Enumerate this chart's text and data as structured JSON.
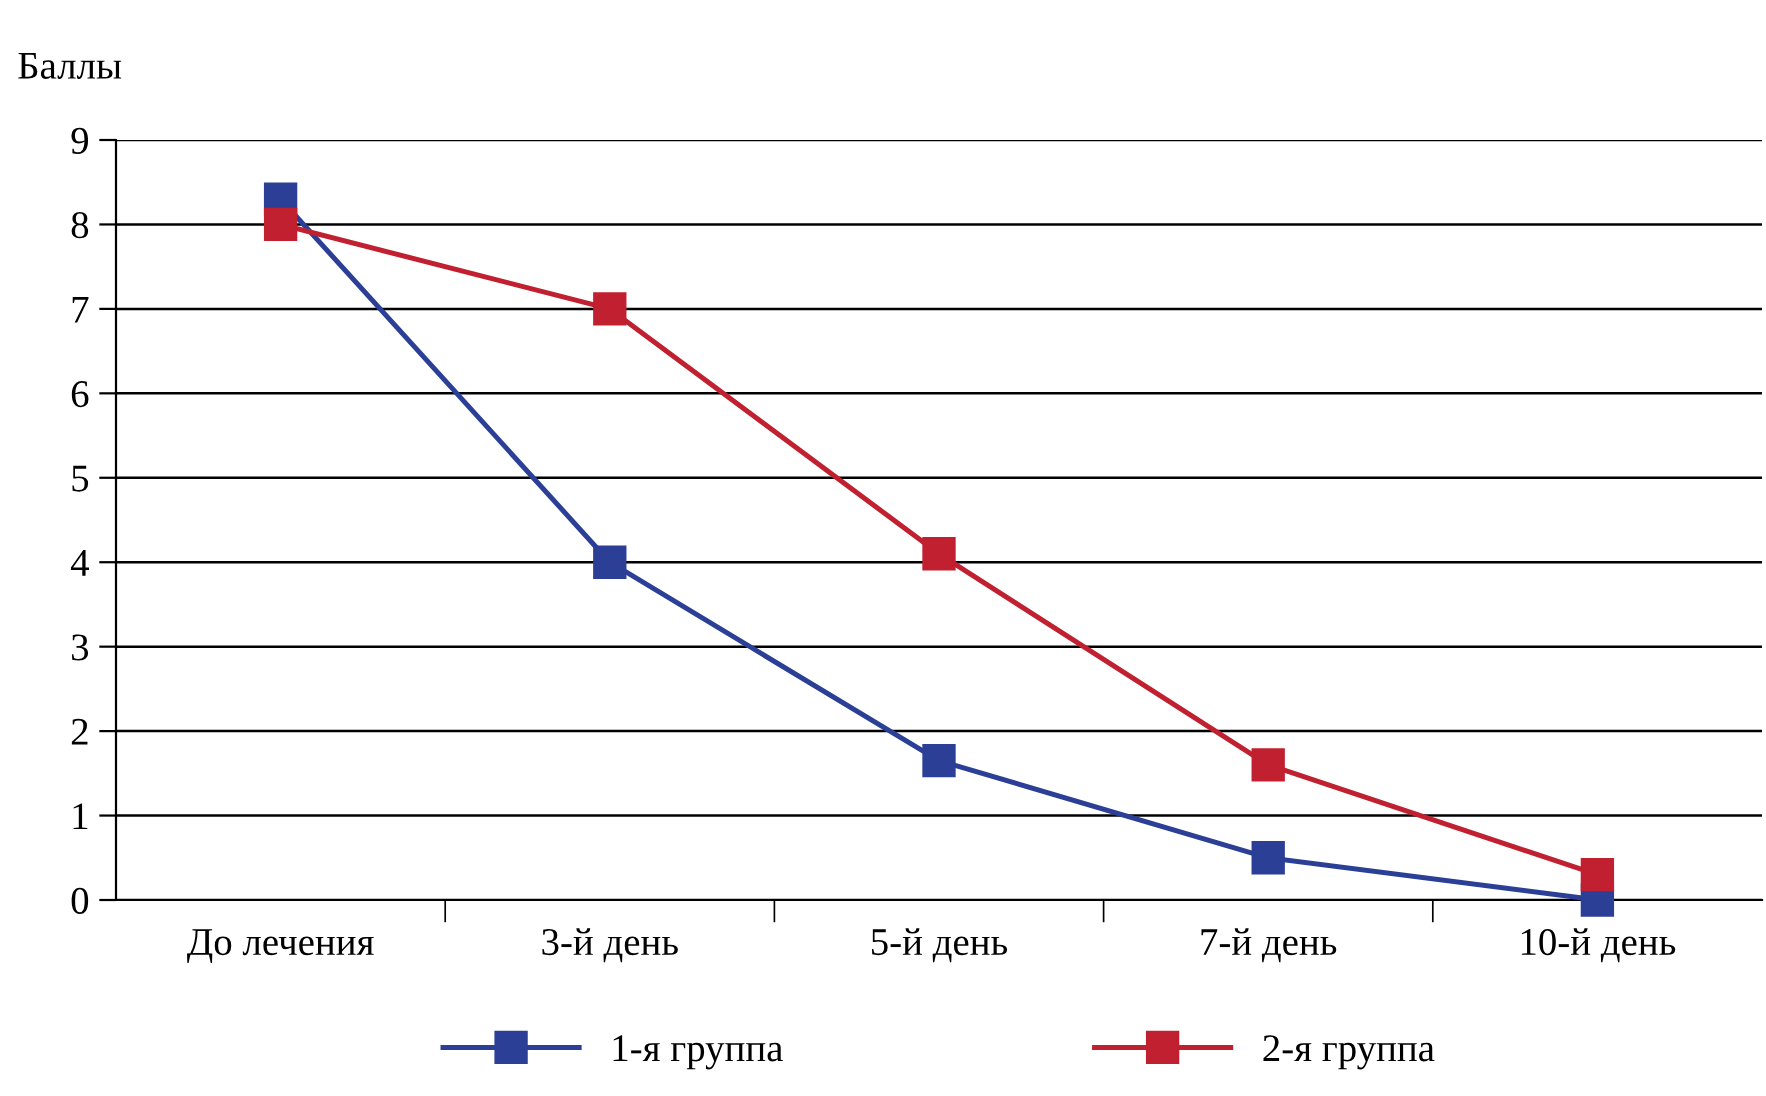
{
  "chart_data": {
    "type": "line",
    "ylabel": "Баллы",
    "categories": [
      "До лечения",
      "3-й день",
      "5-й день",
      "7-й день",
      "10-й день"
    ],
    "series": [
      {
        "name": "1-я группа",
        "color": "#2a3f95",
        "values": [
          8.3,
          4.0,
          1.65,
          0.5,
          0.0
        ]
      },
      {
        "name": "2-я группа",
        "color": "#c0202f",
        "values": [
          8.0,
          7.0,
          4.1,
          1.6,
          0.3
        ]
      }
    ],
    "ylim": [
      0,
      9
    ],
    "yticks": [
      0,
      1,
      2,
      3,
      4,
      5,
      6,
      7,
      8,
      9
    ],
    "grid": "y",
    "legend": "bottom",
    "marker": "square",
    "line_style": "solid"
  }
}
